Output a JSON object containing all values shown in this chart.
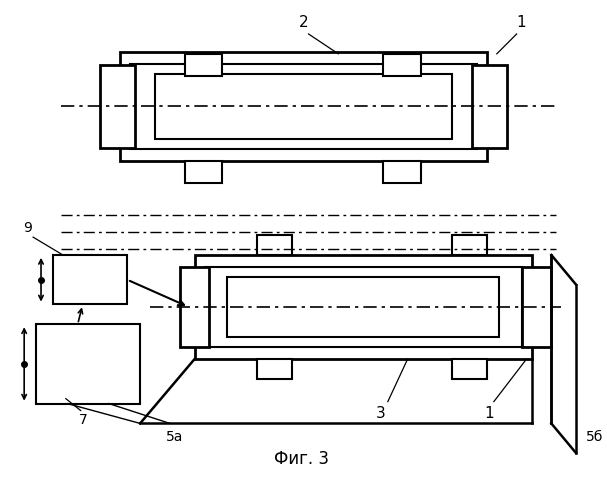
{
  "fig_label": "Фиг. 3",
  "background_color": "#ffffff",
  "line_color": "#000000",
  "figsize": [
    6.07,
    5.0
  ],
  "dpi": 100
}
